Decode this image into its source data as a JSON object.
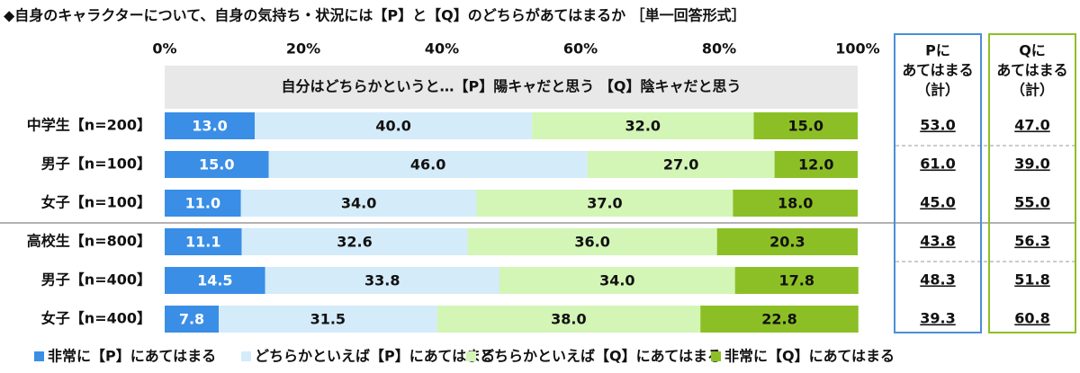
{
  "chart_data": {
    "type": "stacked-bar-horizontal",
    "title": "◆自身のキャラクターについて、自身の気持ち・状況には【P】と【Q】のどちらがあてはまるか ［単一回答形式］",
    "subtitle": "自分はどちらかというと…【P】陽キャだと思う 【Q】陰キャだと思う",
    "categories": [
      "中学生【n=200】",
      "男子【n=100】",
      "女子【n=100】",
      "高校生【n=800】",
      "男子【n=400】",
      "女子【n=400】"
    ],
    "xlim": [
      0,
      100
    ],
    "xticks": [
      {
        "value": 0,
        "label": "0%"
      },
      {
        "value": 20,
        "label": "20%"
      },
      {
        "value": 40,
        "label": "40%"
      },
      {
        "value": 60,
        "label": "60%"
      },
      {
        "value": 80,
        "label": "80%"
      },
      {
        "value": 100,
        "label": "100%"
      }
    ],
    "series": [
      {
        "name": "非常に【P】にあてはまる",
        "color": "#3a8ee6",
        "values": [
          13,
          15,
          11,
          11.1,
          14.5,
          7.8
        ],
        "value_labels": [
          "13.0",
          "15.0",
          "11.0",
          "11.1",
          "14.5",
          "7.8"
        ]
      },
      {
        "name": "どちらかといえば【P】にあてはまる",
        "color": "#d4ebfa",
        "values": [
          40,
          46,
          34,
          32.6,
          33.8,
          31.5
        ],
        "value_labels": [
          "40.0",
          "46.0",
          "34.0",
          "32.6",
          "33.8",
          "31.5"
        ]
      },
      {
        "name": "どちらかといえば【Q】にあてはまる",
        "color": "#d3f5b6",
        "values": [
          32,
          27,
          37,
          36,
          34,
          38
        ],
        "value_labels": [
          "32.0",
          "27.0",
          "37.0",
          "36.0",
          "34.0",
          "38.0"
        ]
      },
      {
        "name": "非常に【Q】にあてはまる",
        "color": "#8cbf26",
        "values": [
          15,
          12,
          18,
          20.3,
          17.8,
          22.8
        ],
        "value_labels": [
          "15.0",
          "12.0",
          "18.0",
          "20.3",
          "17.8",
          "22.8"
        ]
      }
    ],
    "totals": [
      {
        "header": [
          "Pに",
          "あてはまる",
          "（計）"
        ],
        "color": "#4a8fd6",
        "values": [
          53,
          61,
          45,
          43.8,
          48.3,
          39.3
        ],
        "value_labels": [
          "53.0",
          "61.0",
          "45.0",
          "43.8",
          "48.3",
          "39.3"
        ]
      },
      {
        "header": [
          "Qに",
          "あてはまる",
          "（計）"
        ],
        "color": "#8cbf26",
        "values": [
          47,
          39,
          55,
          56.3,
          51.8,
          60.8
        ],
        "value_labels": [
          "47.0",
          "39.0",
          "55.0",
          "56.3",
          "51.8",
          "60.8"
        ]
      }
    ]
  }
}
